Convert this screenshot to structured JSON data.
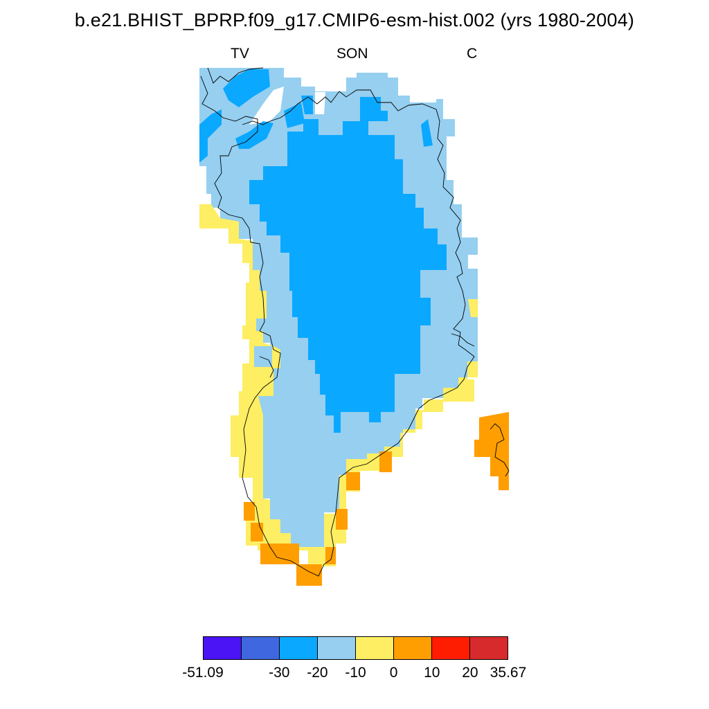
{
  "title": "b.e21.BHIST_BPRP.f09_g17.CMIP6-esm-hist.002 (yrs 1980-2004)",
  "subtitle_left": "TV",
  "subtitle_center": "SON",
  "subtitle_right": "C",
  "colorbar": {
    "colors": [
      "#4a14f5",
      "#3f68e0",
      "#0ba8ff",
      "#96cff0",
      "#fdee63",
      "#fe9e00",
      "#fe1d00",
      "#d62a2c"
    ],
    "labels": [
      "-51.09",
      "-30",
      "-20",
      "-10",
      "0",
      "10",
      "20",
      "35.67"
    ],
    "ranges": [
      [
        -51.09,
        -40
      ],
      [
        -40,
        -30
      ],
      [
        -30,
        -20
      ],
      [
        -20,
        -10
      ],
      [
        -10,
        0
      ],
      [
        0,
        10
      ],
      [
        10,
        20
      ],
      [
        20,
        35.67
      ]
    ]
  },
  "map": {
    "region": "Greenland",
    "coastline": "black",
    "colors": {
      "ice": "#0ba8ff",
      "lightblue": "#96cff0",
      "yellow": "#fdee63",
      "orange": "#fe9e00"
    }
  }
}
